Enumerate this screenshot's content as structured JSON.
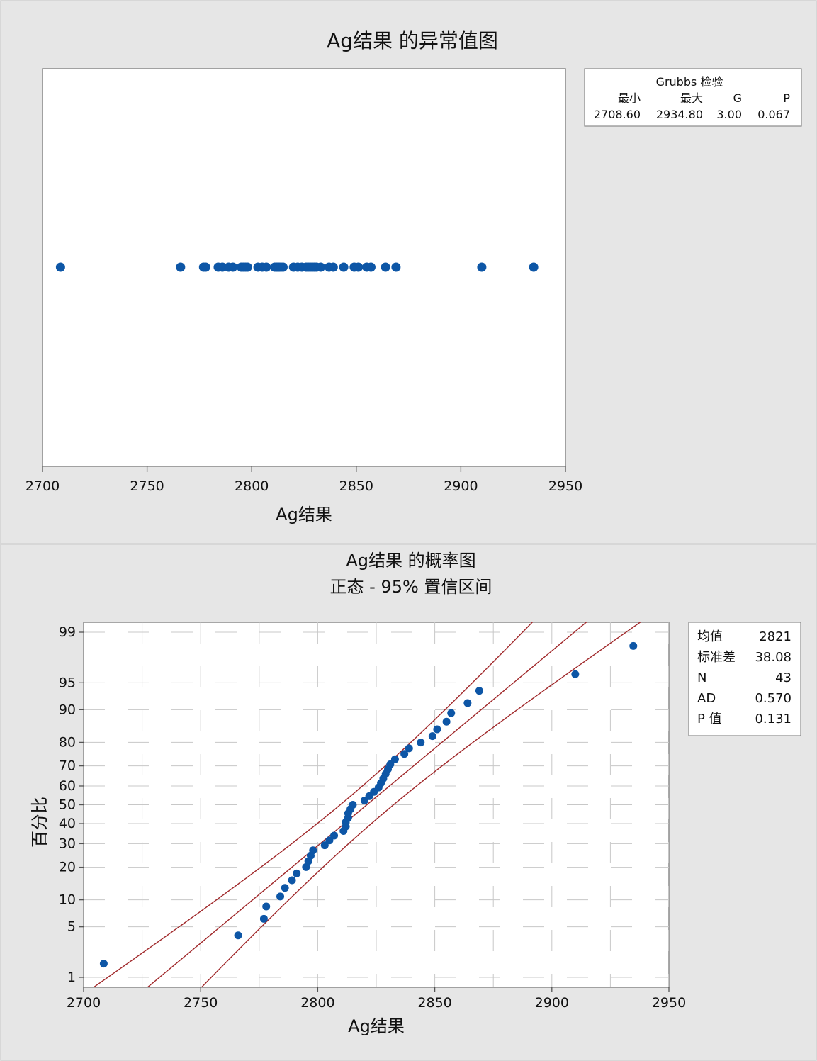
{
  "chart_data": [
    {
      "type": "scatter",
      "title": "Ag结果 的异常值图",
      "xlabel": "Ag结果",
      "ylabel": "",
      "xlim": [
        2700,
        2950
      ],
      "xticks": [
        2700,
        2750,
        2800,
        2850,
        2900,
        2950
      ],
      "xtick_labels": [
        "2700",
        "2750",
        "2800",
        "2850",
        "2900",
        "2950"
      ],
      "grid": false,
      "legend_placement": "top-right",
      "marker_color": "#0d56a6",
      "x": [
        2708.6,
        2766,
        2777,
        2778,
        2784,
        2786,
        2789,
        2791,
        2795,
        2796,
        2797,
        2798,
        2803,
        2805,
        2807,
        2811,
        2812,
        2812,
        2813,
        2813,
        2814,
        2815,
        2820,
        2822,
        2824,
        2826,
        2827,
        2828,
        2829,
        2830,
        2831,
        2833,
        2837,
        2839,
        2844,
        2849,
        2851,
        2855,
        2857,
        2864,
        2869,
        2910,
        2934.8
      ],
      "grubbs_table": {
        "title": "Grubbs 检验",
        "headers": [
          "最小",
          "最大",
          "G",
          "P"
        ],
        "values": [
          "2708.60",
          "2934.80",
          "3.00",
          "0.067"
        ]
      }
    },
    {
      "type": "scatter",
      "title": "Ag结果 的概率图",
      "subtitle": "正态 - 95% 置信区间",
      "xlabel": "Ag结果",
      "ylabel": "百分比",
      "xlim": [
        2700,
        2950
      ],
      "xticks": [
        2700,
        2750,
        2800,
        2850,
        2900,
        2950
      ],
      "xtick_labels": [
        "2700",
        "2750",
        "2800",
        "2850",
        "2900",
        "2950"
      ],
      "yscale": "normal-probability",
      "ylim": [
        1,
        99
      ],
      "yticks": [
        1,
        5,
        10,
        20,
        30,
        40,
        50,
        60,
        70,
        80,
        90,
        95,
        99
      ],
      "ytick_labels": [
        "1",
        "5",
        "10",
        "20",
        "30",
        "40",
        "50",
        "60",
        "70",
        "80",
        "90",
        "95",
        "99"
      ],
      "grid": true,
      "legend_placement": "top-right",
      "marker_color": "#0d56a6",
      "line_color": "#a0282a",
      "x": [
        2708.6,
        2766,
        2777,
        2778,
        2784,
        2786,
        2789,
        2791,
        2795,
        2796,
        2797,
        2798,
        2803,
        2805,
        2807,
        2811,
        2812,
        2812,
        2813,
        2813,
        2814,
        2815,
        2820,
        2822,
        2824,
        2826,
        2827,
        2828,
        2829,
        2830,
        2831,
        2833,
        2837,
        2839,
        2844,
        2849,
        2851,
        2855,
        2857,
        2864,
        2869,
        2910,
        2934.8
      ],
      "fit": {
        "mean": 2821,
        "stdev": 38.08,
        "n": 43
      },
      "stats": [
        {
          "label": "均值",
          "value": "2821"
        },
        {
          "label": "标准差",
          "value": "38.08"
        },
        {
          "label": "N",
          "value": "43"
        },
        {
          "label": "AD",
          "value": "0.570"
        },
        {
          "label": "P 值",
          "value": "0.131"
        }
      ]
    }
  ]
}
